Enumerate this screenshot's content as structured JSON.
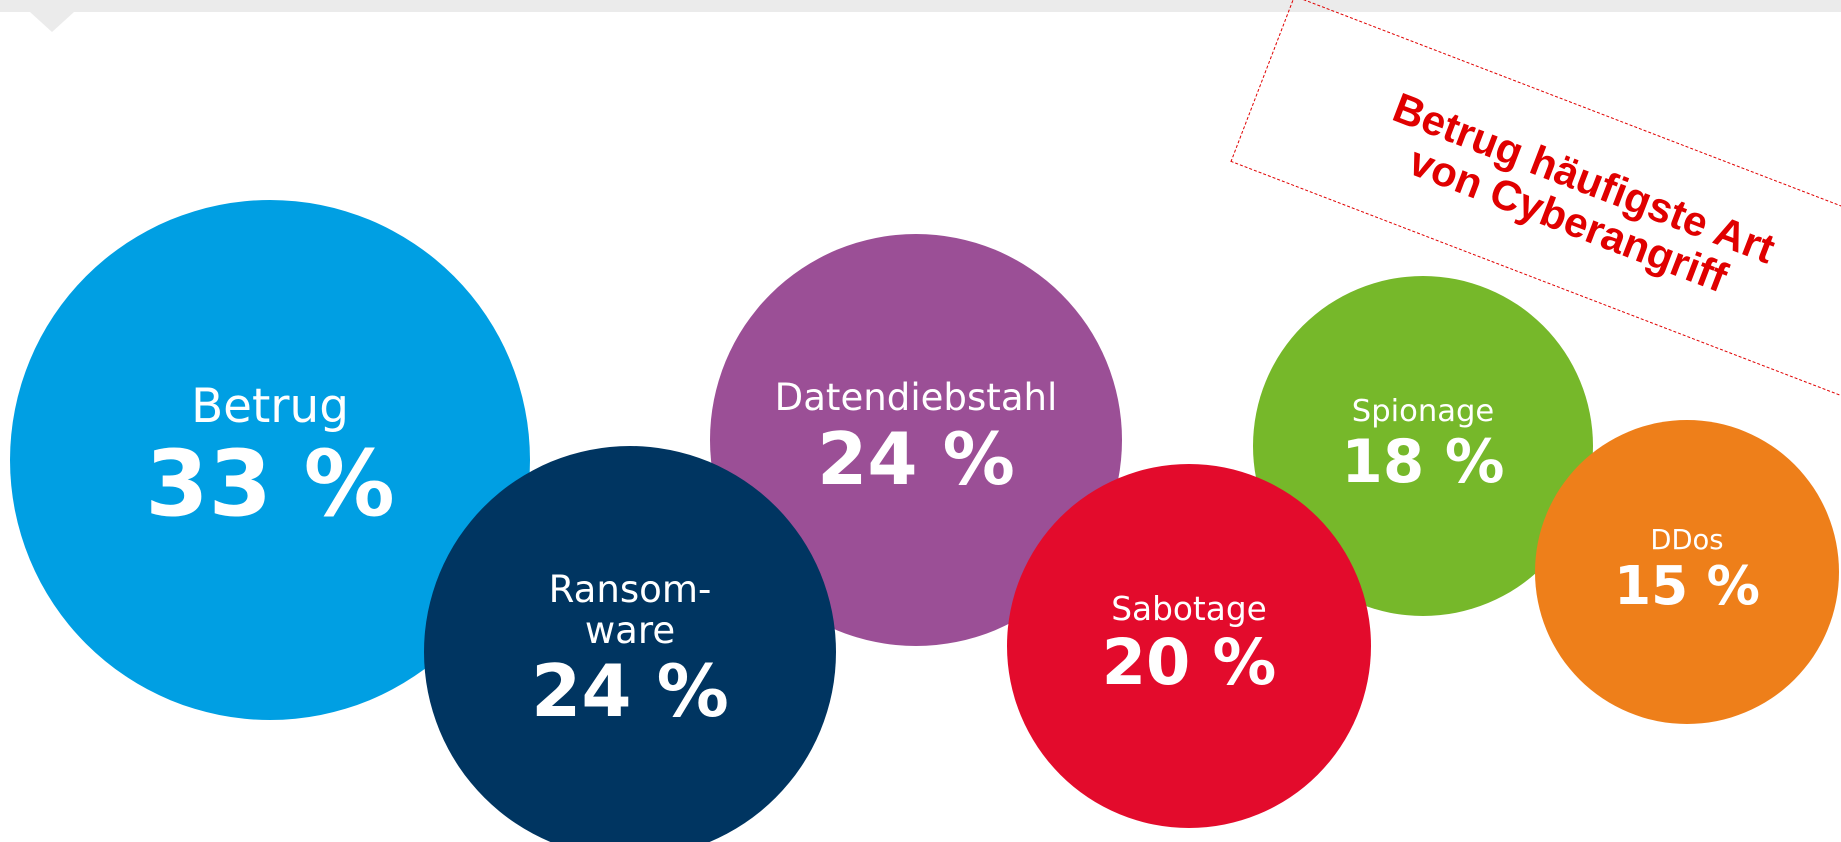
{
  "chart_data": {
    "type": "bubble",
    "annotation": "Betrug häufigste Art\nvon Cyberangriff",
    "categories": [
      "Betrug",
      "Ransom-\nware",
      "Datendiebstahl",
      "Sabotage",
      "Spionage",
      "DDos"
    ],
    "values": [
      33,
      24,
      24,
      20,
      18,
      15
    ],
    "value_labels": [
      "33 %",
      "24 %",
      "24 %",
      "20 %",
      "18 %",
      "15 %"
    ],
    "colors": [
      "#009fe3",
      "#003561",
      "#9b4f96",
      "#e30b2c",
      "#76b82a",
      "#ee7f1a"
    ]
  }
}
